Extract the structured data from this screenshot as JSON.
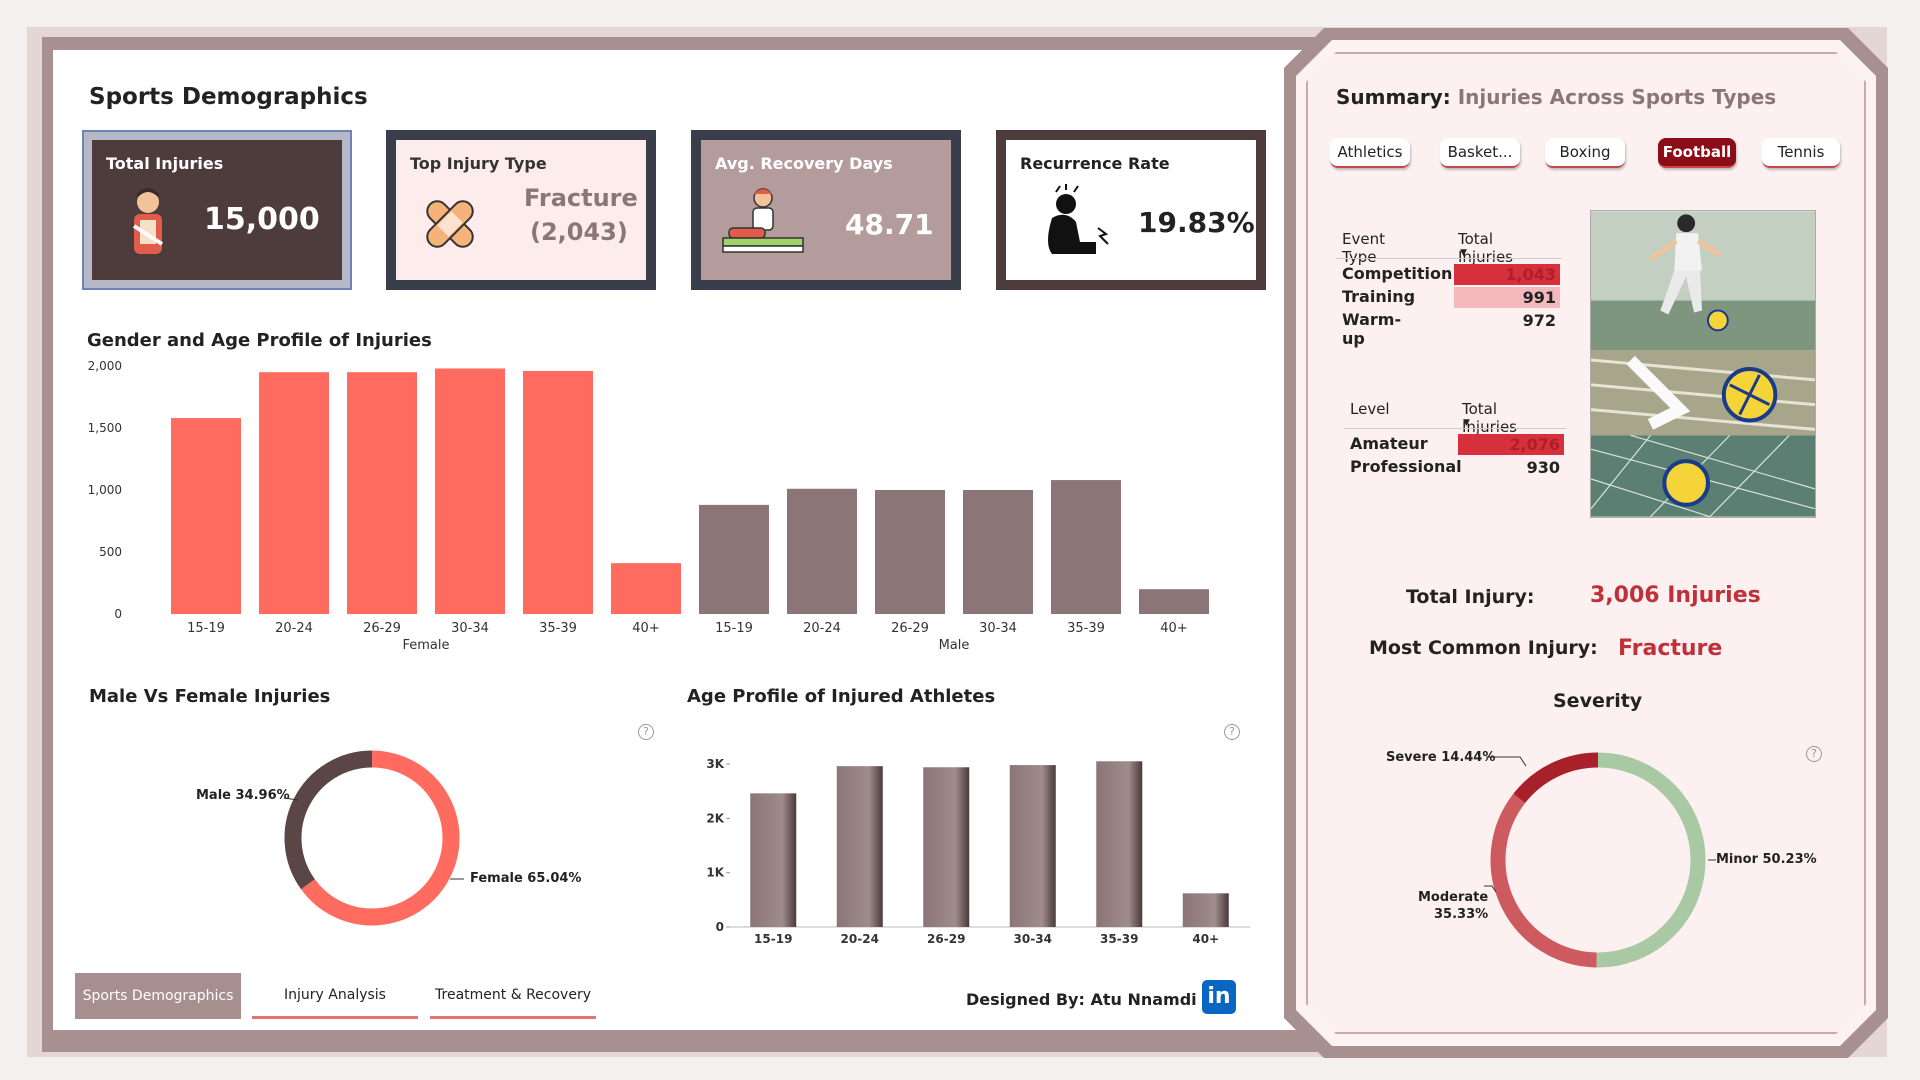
{
  "page": {
    "title": "Sports Demographics"
  },
  "kpis": {
    "total_injuries": {
      "label": "Total Injuries",
      "value": "15,000"
    },
    "top_injury": {
      "label": "Top Injury Type",
      "value": "Fracture",
      "count": "(2,043)"
    },
    "recovery": {
      "label": "Avg. Recovery Days",
      "value": "48.71"
    },
    "recurrence": {
      "label": "Recurrence Rate",
      "value": "19.83%"
    }
  },
  "gender_age_chart": {
    "title": "Gender and Age Profile of Injuries",
    "y_ticks": [
      "2,000",
      "1,500",
      "1,000",
      "500",
      "0"
    ],
    "group_labels": [
      "Female",
      "Male"
    ]
  },
  "gender_donut": {
    "title": "Male Vs Female Injuries",
    "male_label": "Male 34.96%",
    "female_label": "Female 65.04%"
  },
  "age_chart": {
    "title": "Age Profile of Injured Athletes",
    "y_ticks": [
      "3K",
      "2K",
      "1K",
      "0"
    ]
  },
  "chart_data": [
    {
      "type": "bar",
      "title": "Gender and Age Profile of Injuries",
      "categories": [
        "15-19",
        "20-24",
        "26-29",
        "30-34",
        "35-39",
        "40+"
      ],
      "series": [
        {
          "name": "Female",
          "values": [
            1580,
            1950,
            1950,
            1980,
            1960,
            410
          ],
          "color": "#ff6b5e"
        },
        {
          "name": "Male",
          "values": [
            880,
            1010,
            1000,
            1000,
            1080,
            200
          ],
          "color": "#8b7576"
        }
      ],
      "ylim": [
        0,
        2000
      ]
    },
    {
      "type": "pie",
      "title": "Male Vs Female Injuries",
      "labels": [
        "Male",
        "Female"
      ],
      "values": [
        34.96,
        65.04
      ],
      "colors": [
        "#5a4646",
        "#ff6b5e"
      ]
    },
    {
      "type": "bar",
      "title": "Age Profile of Injured Athletes",
      "categories": [
        "15-19",
        "20-24",
        "26-29",
        "30-34",
        "35-39",
        "40+"
      ],
      "values": [
        2460,
        2960,
        2940,
        2980,
        3050,
        620
      ],
      "ylim": [
        0,
        3000
      ]
    },
    {
      "type": "pie",
      "title": "Severity",
      "labels": [
        "Minor",
        "Moderate",
        "Severe"
      ],
      "values": [
        50.23,
        35.33,
        14.44
      ],
      "colors": [
        "#a9c9a4",
        "#cc5a5e",
        "#a8202a"
      ]
    }
  ],
  "nav": {
    "tabs": [
      "Sports Demographics",
      "Injury Analysis",
      "Treatment & Recovery"
    ]
  },
  "footer": {
    "designed_by": "Designed By: Atu Nnamdi",
    "linkedin": "in"
  },
  "summary": {
    "title": "Summary:",
    "subtitle": "Injuries Across Sports Types",
    "sports": [
      "Athletics",
      "Basket...",
      "Boxing",
      "Football",
      "Tennis"
    ],
    "active_sport": "Football",
    "event_table": {
      "col1": "Event Type",
      "col2": "Total Injuries",
      "rows": [
        {
          "label": "Competition",
          "value": "1,043"
        },
        {
          "label": "Training",
          "value": "991"
        },
        {
          "label": "Warm-up",
          "value": "972"
        }
      ]
    },
    "level_table": {
      "col1": "Level",
      "col2": "Total Injuries",
      "rows": [
        {
          "label": "Amateur",
          "value": "2,076"
        },
        {
          "label": "Professional",
          "value": "930"
        }
      ]
    },
    "total_injury_label": "Total Injury:",
    "total_injury_value": "3,006 Injuries",
    "common_injury_label": "Most Common Injury:",
    "common_injury_value": "Fracture",
    "severity_title": "Severity",
    "severity_labels": {
      "severe": "Severe 14.44%",
      "minor": "Minor 50.23%",
      "moderate_name": "Moderate",
      "moderate_pct": "35.33%"
    }
  },
  "colors": {
    "accent": "#ff6b5e",
    "male": "#8b7576",
    "brand_dark": "#4e3b3b",
    "active": "#8b0d17"
  }
}
